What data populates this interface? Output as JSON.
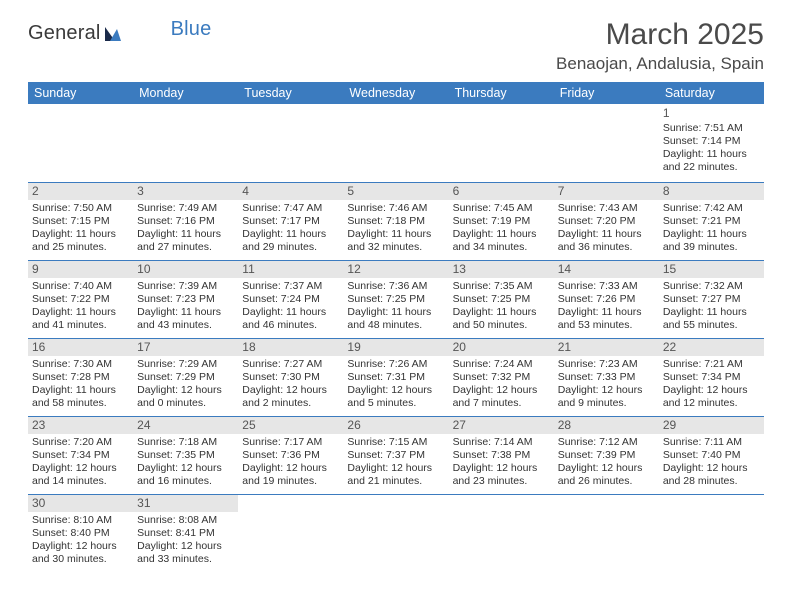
{
  "logo": {
    "text1": "General",
    "text2": "Blue"
  },
  "title": "March 2025",
  "location": "Benaojan, Andalusia, Spain",
  "colors": {
    "header_bg": "#3b7bbf",
    "header_fg": "#ffffff",
    "grid_line": "#3b7bbf",
    "daynum_band": "#e6e6e6",
    "text": "#333333"
  },
  "weekdays": [
    "Sunday",
    "Monday",
    "Tuesday",
    "Wednesday",
    "Thursday",
    "Friday",
    "Saturday"
  ],
  "weeks": [
    [
      null,
      null,
      null,
      null,
      null,
      null,
      {
        "n": "1",
        "sr": "7:51 AM",
        "ss": "7:14 PM",
        "dl": "11 hours",
        "dl2": "and 22 minutes."
      }
    ],
    [
      {
        "n": "2",
        "sr": "7:50 AM",
        "ss": "7:15 PM",
        "dl": "11 hours",
        "dl2": "and 25 minutes."
      },
      {
        "n": "3",
        "sr": "7:49 AM",
        "ss": "7:16 PM",
        "dl": "11 hours",
        "dl2": "and 27 minutes."
      },
      {
        "n": "4",
        "sr": "7:47 AM",
        "ss": "7:17 PM",
        "dl": "11 hours",
        "dl2": "and 29 minutes."
      },
      {
        "n": "5",
        "sr": "7:46 AM",
        "ss": "7:18 PM",
        "dl": "11 hours",
        "dl2": "and 32 minutes."
      },
      {
        "n": "6",
        "sr": "7:45 AM",
        "ss": "7:19 PM",
        "dl": "11 hours",
        "dl2": "and 34 minutes."
      },
      {
        "n": "7",
        "sr": "7:43 AM",
        "ss": "7:20 PM",
        "dl": "11 hours",
        "dl2": "and 36 minutes."
      },
      {
        "n": "8",
        "sr": "7:42 AM",
        "ss": "7:21 PM",
        "dl": "11 hours",
        "dl2": "and 39 minutes."
      }
    ],
    [
      {
        "n": "9",
        "sr": "7:40 AM",
        "ss": "7:22 PM",
        "dl": "11 hours",
        "dl2": "and 41 minutes."
      },
      {
        "n": "10",
        "sr": "7:39 AM",
        "ss": "7:23 PM",
        "dl": "11 hours",
        "dl2": "and 43 minutes."
      },
      {
        "n": "11",
        "sr": "7:37 AM",
        "ss": "7:24 PM",
        "dl": "11 hours",
        "dl2": "and 46 minutes."
      },
      {
        "n": "12",
        "sr": "7:36 AM",
        "ss": "7:25 PM",
        "dl": "11 hours",
        "dl2": "and 48 minutes."
      },
      {
        "n": "13",
        "sr": "7:35 AM",
        "ss": "7:25 PM",
        "dl": "11 hours",
        "dl2": "and 50 minutes."
      },
      {
        "n": "14",
        "sr": "7:33 AM",
        "ss": "7:26 PM",
        "dl": "11 hours",
        "dl2": "and 53 minutes."
      },
      {
        "n": "15",
        "sr": "7:32 AM",
        "ss": "7:27 PM",
        "dl": "11 hours",
        "dl2": "and 55 minutes."
      }
    ],
    [
      {
        "n": "16",
        "sr": "7:30 AM",
        "ss": "7:28 PM",
        "dl": "11 hours",
        "dl2": "and 58 minutes."
      },
      {
        "n": "17",
        "sr": "7:29 AM",
        "ss": "7:29 PM",
        "dl": "12 hours",
        "dl2": "and 0 minutes."
      },
      {
        "n": "18",
        "sr": "7:27 AM",
        "ss": "7:30 PM",
        "dl": "12 hours",
        "dl2": "and 2 minutes."
      },
      {
        "n": "19",
        "sr": "7:26 AM",
        "ss": "7:31 PM",
        "dl": "12 hours",
        "dl2": "and 5 minutes."
      },
      {
        "n": "20",
        "sr": "7:24 AM",
        "ss": "7:32 PM",
        "dl": "12 hours",
        "dl2": "and 7 minutes."
      },
      {
        "n": "21",
        "sr": "7:23 AM",
        "ss": "7:33 PM",
        "dl": "12 hours",
        "dl2": "and 9 minutes."
      },
      {
        "n": "22",
        "sr": "7:21 AM",
        "ss": "7:34 PM",
        "dl": "12 hours",
        "dl2": "and 12 minutes."
      }
    ],
    [
      {
        "n": "23",
        "sr": "7:20 AM",
        "ss": "7:34 PM",
        "dl": "12 hours",
        "dl2": "and 14 minutes."
      },
      {
        "n": "24",
        "sr": "7:18 AM",
        "ss": "7:35 PM",
        "dl": "12 hours",
        "dl2": "and 16 minutes."
      },
      {
        "n": "25",
        "sr": "7:17 AM",
        "ss": "7:36 PM",
        "dl": "12 hours",
        "dl2": "and 19 minutes."
      },
      {
        "n": "26",
        "sr": "7:15 AM",
        "ss": "7:37 PM",
        "dl": "12 hours",
        "dl2": "and 21 minutes."
      },
      {
        "n": "27",
        "sr": "7:14 AM",
        "ss": "7:38 PM",
        "dl": "12 hours",
        "dl2": "and 23 minutes."
      },
      {
        "n": "28",
        "sr": "7:12 AM",
        "ss": "7:39 PM",
        "dl": "12 hours",
        "dl2": "and 26 minutes."
      },
      {
        "n": "29",
        "sr": "7:11 AM",
        "ss": "7:40 PM",
        "dl": "12 hours",
        "dl2": "and 28 minutes."
      }
    ],
    [
      {
        "n": "30",
        "sr": "8:10 AM",
        "ss": "8:40 PM",
        "dl": "12 hours",
        "dl2": "and 30 minutes."
      },
      {
        "n": "31",
        "sr": "8:08 AM",
        "ss": "8:41 PM",
        "dl": "12 hours",
        "dl2": "and 33 minutes."
      },
      null,
      null,
      null,
      null,
      null
    ]
  ],
  "labels": {
    "sunrise": "Sunrise: ",
    "sunset": "Sunset: ",
    "daylight": "Daylight: "
  }
}
